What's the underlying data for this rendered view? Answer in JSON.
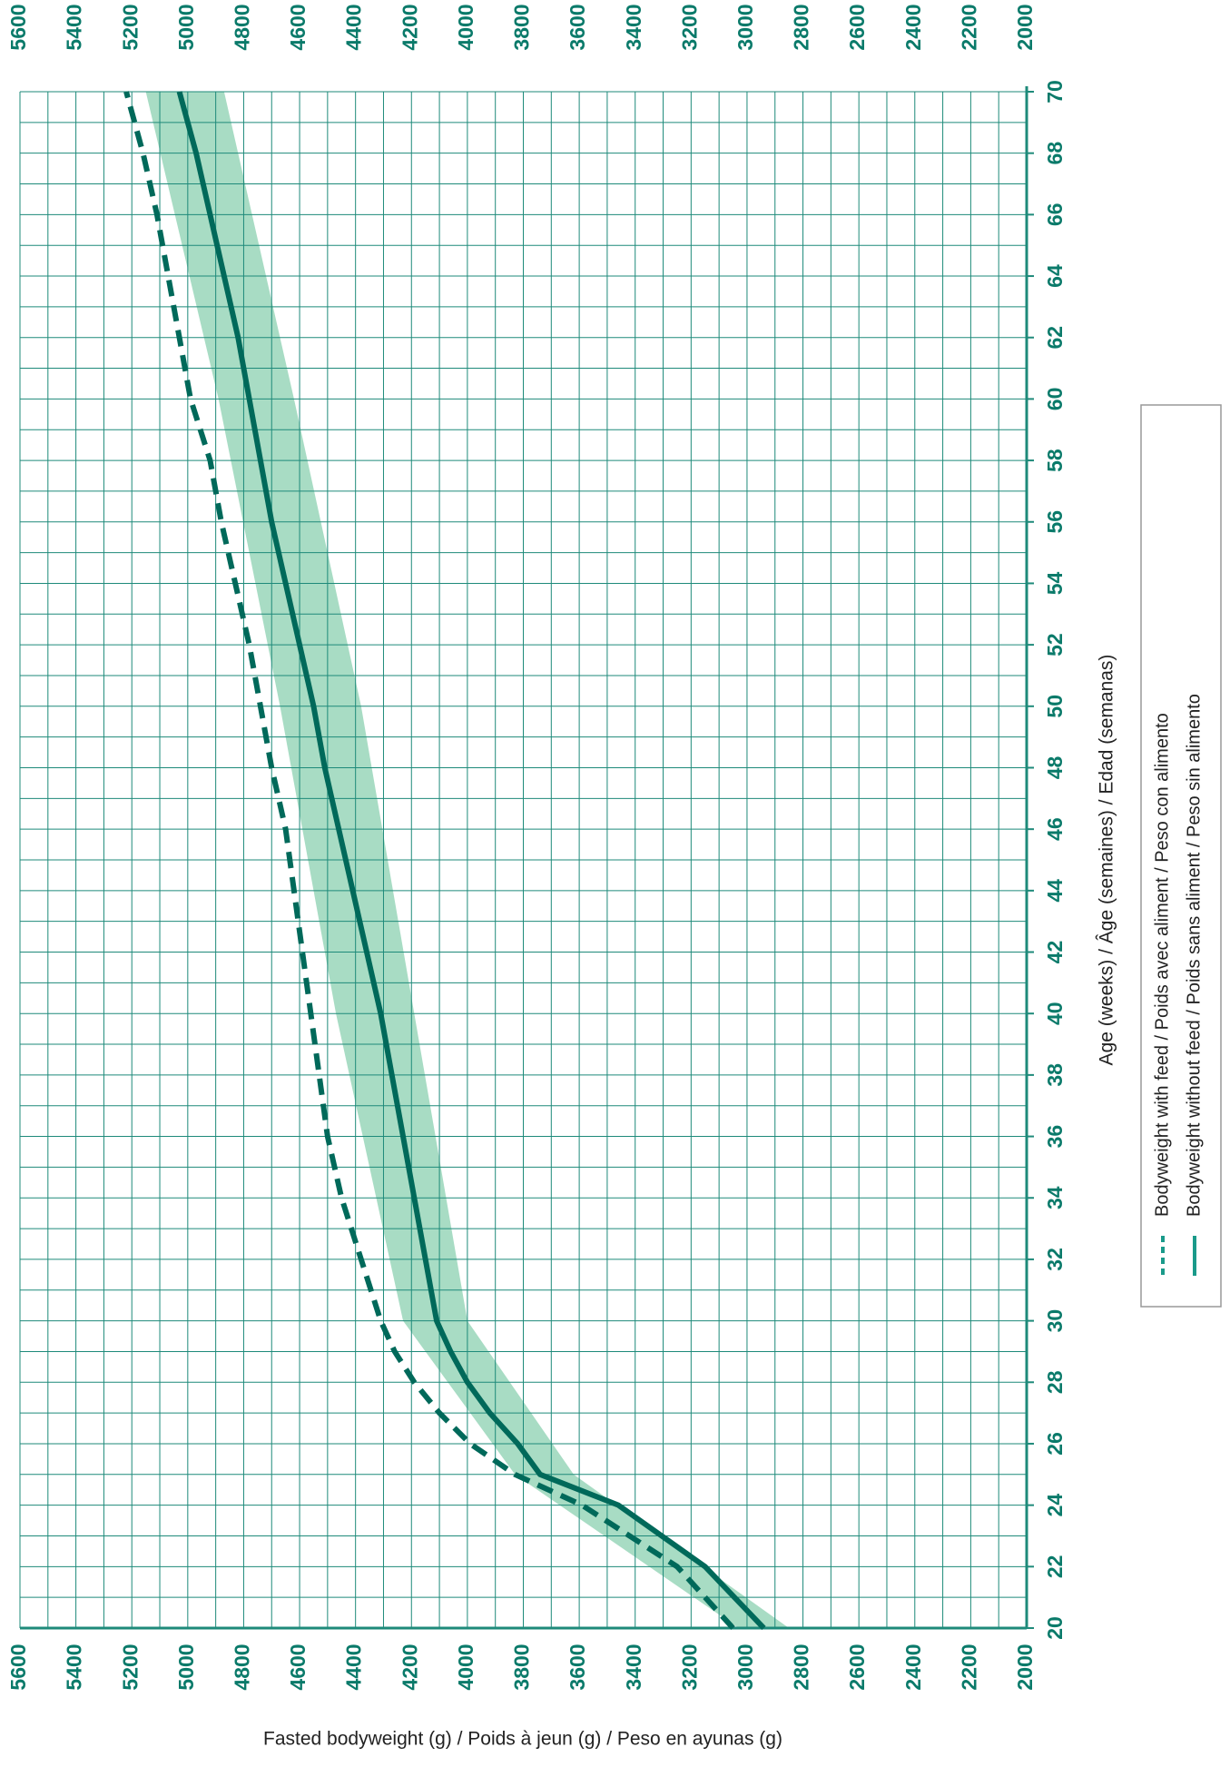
{
  "chart_data": {
    "type": "line",
    "x_label": "Fasted bodyweight (g) / Poids à jeun (g) / Peso en ayunas (g)",
    "y_label": "Age (weeks) / Âge (semaines) / Edad (semanas)",
    "xlim": [
      5600,
      2000
    ],
    "ylim": [
      20,
      70
    ],
    "xticks": [
      5600,
      5400,
      5200,
      5000,
      4800,
      4600,
      4400,
      4200,
      4000,
      3800,
      3600,
      3400,
      3200,
      3000,
      2800,
      2600,
      2400,
      2200,
      2000
    ],
    "yticks": [
      20,
      22,
      24,
      26,
      28,
      30,
      32,
      34,
      36,
      38,
      40,
      42,
      44,
      46,
      48,
      50,
      52,
      54,
      56,
      58,
      60,
      62,
      64,
      66,
      68,
      70
    ],
    "xgrid": [
      5600,
      5500,
      5400,
      5300,
      5200,
      5100,
      5000,
      4900,
      4800,
      4700,
      4600,
      4500,
      4400,
      4300,
      4200,
      4100,
      4000,
      3900,
      3800,
      3700,
      3600,
      3500,
      3400,
      3300,
      3200,
      3100,
      3000,
      2900,
      2800,
      2700,
      2600,
      2500,
      2400,
      2300,
      2200,
      2100,
      2000
    ],
    "ygrid": [
      20,
      21,
      22,
      23,
      24,
      25,
      26,
      27,
      28,
      29,
      30,
      31,
      32,
      33,
      34,
      35,
      36,
      37,
      38,
      39,
      40,
      41,
      42,
      43,
      44,
      45,
      46,
      47,
      48,
      49,
      50,
      51,
      52,
      53,
      54,
      55,
      56,
      57,
      58,
      59,
      60,
      61,
      62,
      63,
      64,
      65,
      66,
      67,
      68,
      69,
      70
    ],
    "grid_color": "#1e8a7a",
    "ages": [
      20,
      22,
      24,
      25,
      26,
      27,
      28,
      29,
      30,
      32,
      34,
      36,
      38,
      40,
      42,
      44,
      46,
      48,
      50,
      52,
      54,
      56,
      58,
      60,
      62,
      64,
      66,
      68,
      70
    ],
    "series": [
      {
        "name": "Bodyweight with feed / Poids avec aliment / Peso con alimento",
        "color": "#00695a",
        "dashed": true,
        "values": [
          3050,
          3250,
          3590,
          3830,
          3990,
          4100,
          4190,
          4260,
          4310,
          4380,
          4450,
          4500,
          4530,
          4560,
          4590,
          4620,
          4650,
          4700,
          4740,
          4780,
          4830,
          4880,
          4920,
          4990,
          5030,
          5070,
          5110,
          5160,
          5220
        ]
      },
      {
        "name": "Bodyweight without feed / Poids sans aliment / Peso sin alimento",
        "color": "#00695a",
        "dashed": false,
        "values": [
          2940,
          3150,
          3460,
          3740,
          3820,
          3920,
          4000,
          4060,
          4110,
          4150,
          4190,
          4230,
          4270,
          4310,
          4360,
          4410,
          4460,
          4510,
          4550,
          4600,
          4650,
          4700,
          4740,
          4780,
          4820,
          4870,
          4920,
          4970,
          5030
        ]
      }
    ],
    "band": {
      "color": "#a8dcc4",
      "ages": [
        20,
        25,
        30,
        40,
        50,
        60,
        70
      ],
      "low": [
        2850,
        3620,
        4000,
        4190,
        4380,
        4620,
        4870
      ],
      "high": [
        3030,
        3830,
        4230,
        4470,
        4670,
        4890,
        5150
      ]
    },
    "legend_color": "#1a9a8a"
  }
}
